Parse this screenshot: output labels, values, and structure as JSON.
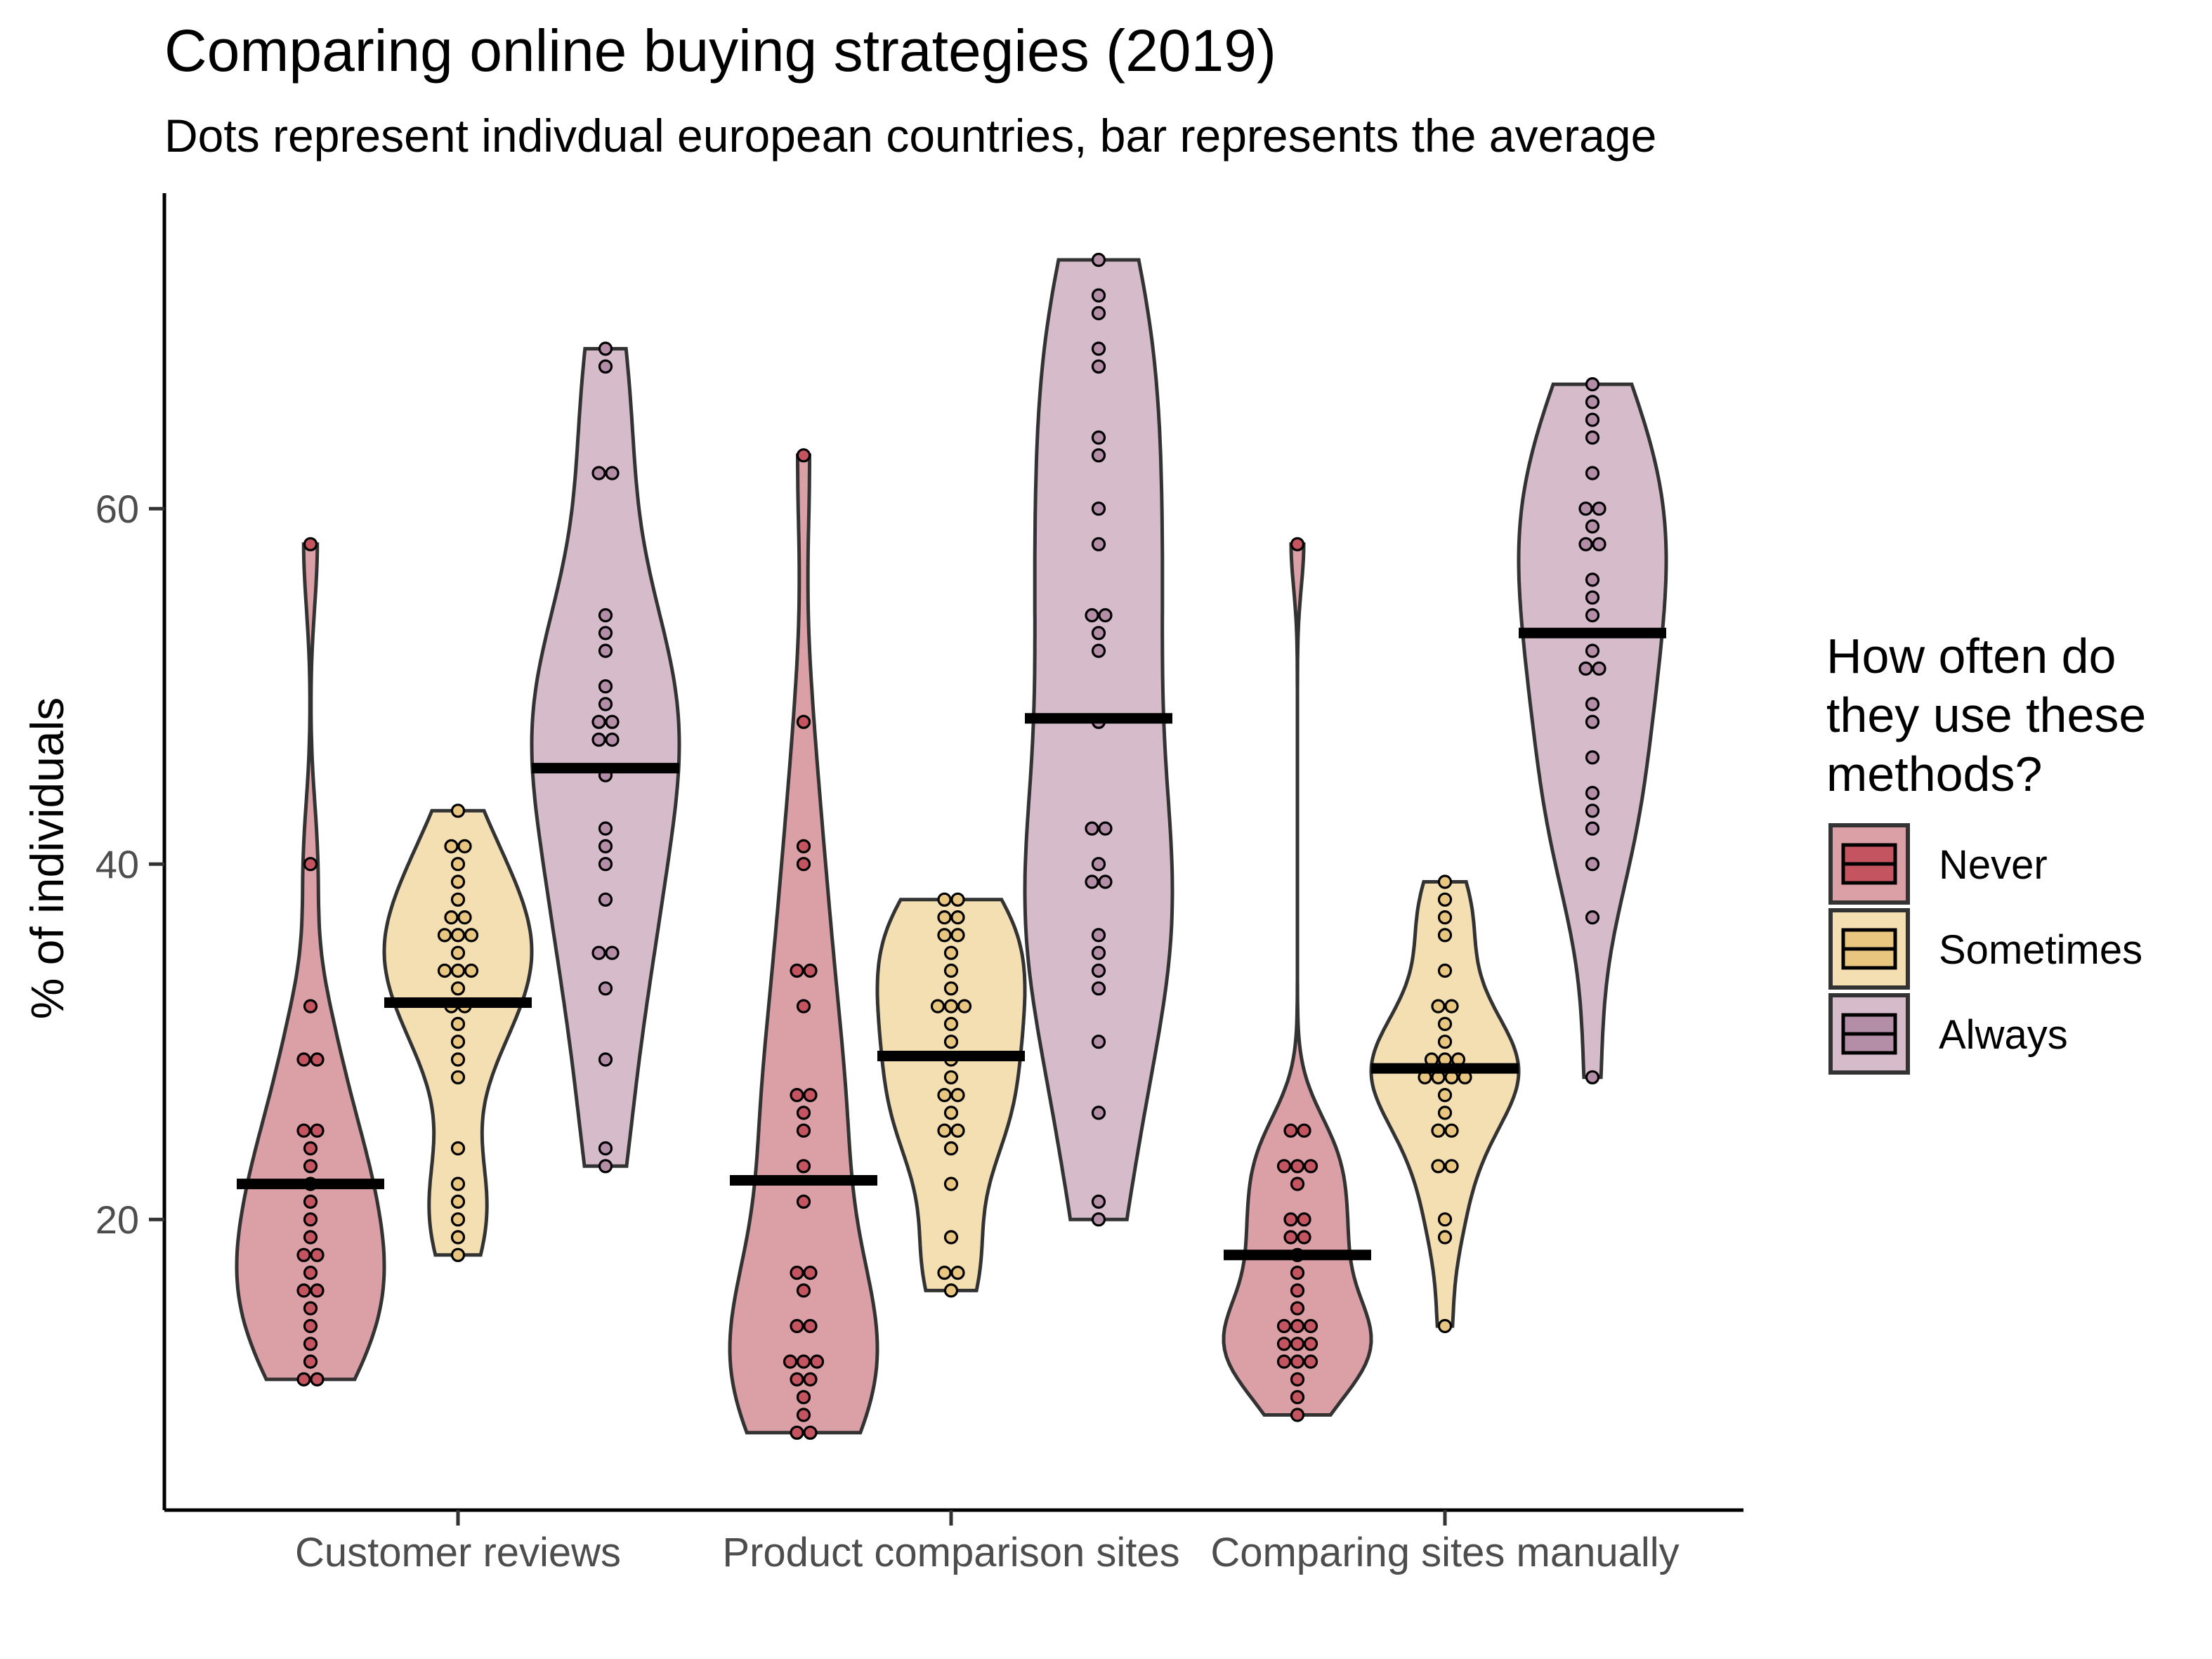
{
  "chart_data": {
    "type": "violin",
    "title": "Comparing online buying strategies (2019)",
    "subtitle": "Dots represent indivdual european countries, bar represents the average",
    "xlabel": "",
    "ylabel": "% of individuals",
    "ylim": [
      4,
      78
    ],
    "yticks": [
      20,
      40,
      60
    ],
    "grid": false,
    "legend": {
      "title": "How often do they use these methods?",
      "title_lines": [
        "How often do",
        "they use these",
        "methods?"
      ],
      "placement": "right"
    },
    "categories": [
      "Customer reviews",
      "Product comparison sites",
      "Comparing sites manually"
    ],
    "series": [
      {
        "name": "Never",
        "color": "#c4545f",
        "fill": "#daa0a6",
        "averages": [
          22,
          22.2,
          18
        ],
        "points": [
          [
            58,
            40,
            32,
            29,
            29,
            25,
            25,
            24,
            23,
            22,
            21,
            20,
            19,
            18,
            18,
            17,
            16,
            16,
            15,
            14,
            13,
            12,
            11,
            11
          ],
          [
            63,
            48,
            41,
            40,
            34,
            34,
            32,
            27,
            27,
            26,
            25,
            23,
            21,
            17,
            17,
            16,
            14,
            14,
            12,
            12,
            12,
            11,
            11,
            10,
            9,
            8,
            8
          ],
          [
            58,
            25,
            25,
            23,
            23,
            23,
            22,
            20,
            20,
            19,
            19,
            18,
            17,
            16,
            15,
            14,
            14,
            14,
            13,
            13,
            13,
            12,
            12,
            12,
            11,
            10,
            9
          ]
        ]
      },
      {
        "name": "Sometimes",
        "color": "#e9c680",
        "fill": "#f3dfb2",
        "averages": [
          32.2,
          29.2,
          28.5
        ],
        "points": [
          [
            43,
            41,
            41,
            40,
            39,
            38,
            37,
            37,
            36,
            36,
            36,
            35,
            34,
            34,
            34,
            33,
            32,
            32,
            31,
            30,
            29,
            28,
            24,
            22,
            21,
            20,
            19,
            18
          ],
          [
            38,
            38,
            37,
            37,
            36,
            36,
            35,
            34,
            33,
            32,
            32,
            32,
            31,
            30,
            29,
            28,
            27,
            27,
            26,
            25,
            25,
            24,
            22,
            19,
            17,
            17,
            16
          ],
          [
            39,
            38,
            37,
            36,
            34,
            32,
            32,
            31,
            30,
            29,
            29,
            29,
            28,
            28,
            28,
            28,
            27,
            26,
            25,
            25,
            23,
            23,
            20,
            19,
            14
          ]
        ]
      },
      {
        "name": "Always",
        "color": "#b48ea6",
        "fill": "#d6bccb",
        "averages": [
          45.4,
          48.2,
          53
        ],
        "points": [
          [
            69,
            68,
            62,
            62,
            54,
            53,
            52,
            50,
            49,
            48,
            48,
            47,
            47,
            45,
            42,
            41,
            40,
            38,
            35,
            35,
            33,
            29,
            24,
            23
          ],
          [
            74,
            72,
            71,
            69,
            68,
            64,
            63,
            60,
            58,
            54,
            54,
            53,
            52,
            48,
            42,
            42,
            40,
            39,
            39,
            36,
            35,
            34,
            33,
            30,
            26,
            21,
            20
          ],
          [
            67,
            66,
            65,
            64,
            62,
            60,
            60,
            59,
            58,
            58,
            56,
            55,
            54,
            52,
            51,
            51,
            49,
            48,
            46,
            44,
            43,
            42,
            40,
            37,
            28
          ]
        ]
      }
    ]
  }
}
